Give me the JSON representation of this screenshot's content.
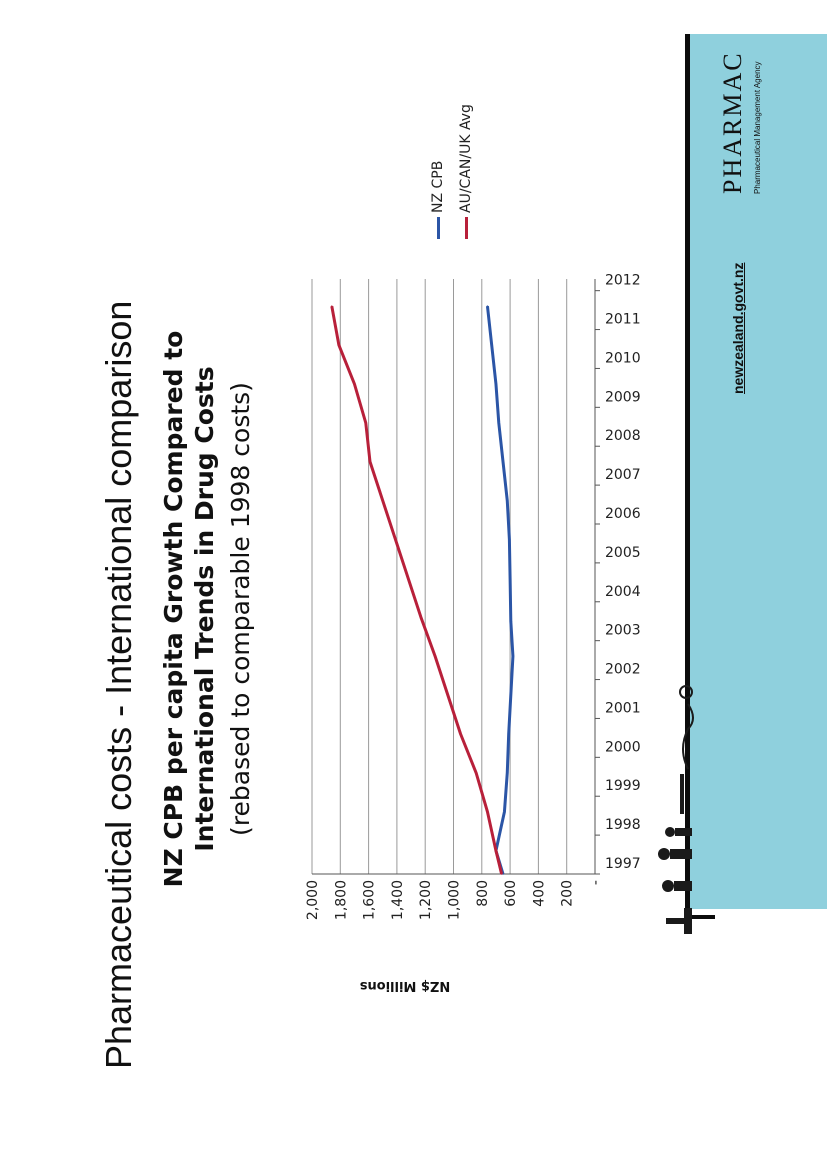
{
  "slide": {
    "title": "Pharmaceutical costs - International comparison"
  },
  "footer": {
    "url": "newzealand.govt.nz",
    "logo_text": "PHARMAC",
    "logo_subtitle": "Pharmaceutical Management Agency"
  },
  "colors": {
    "nz_series": "#2b55a6",
    "intl_series": "#b8203a",
    "footer_bg": "#8fd0dd"
  },
  "chart_data": {
    "type": "line",
    "title": "NZ CPB per capita Growth Compared to International Trends in Drug Costs",
    "subtitle": "(rebased to comparable 1998 costs)",
    "xlabel": "",
    "ylabel": "NZ$ Millions",
    "ylim": [
      0,
      2000
    ],
    "ytick_labels": [
      "-",
      "200",
      "400",
      "600",
      "800",
      "1,000",
      "1,200",
      "1,400",
      "1,600",
      "1,800",
      "2,000"
    ],
    "grid": true,
    "legend_position": "right",
    "categories": [
      "1997",
      "1998",
      "1999",
      "2000",
      "2001",
      "2002",
      "2003",
      "2004",
      "2005",
      "2006",
      "2007",
      "2008",
      "2009",
      "2010",
      "2011",
      "2012"
    ],
    "series": [
      {
        "name": "NZ CPB",
        "color": "#2b55a6",
        "x": [
          1997,
          1997.6,
          1998.6,
          1999.6,
          2000.6,
          2001.6,
          2002.6,
          2003.5,
          2004.6,
          2005.6,
          2006.6,
          2007.6,
          2008.6,
          2009.6,
          2010.6,
          2011.6
        ],
        "values": [
          650,
          700,
          640,
          620,
          610,
          595,
          580,
          595,
          600,
          605,
          620,
          650,
          680,
          700,
          730,
          760
        ]
      },
      {
        "name": "AU/CAN/UK Avg",
        "color": "#b8203a",
        "x": [
          1997,
          1997.6,
          1998.6,
          1999.6,
          2000.6,
          2001.6,
          2002.6,
          2003.6,
          2004.6,
          2005.6,
          2006.6,
          2007.6,
          2008.6,
          2009.6,
          2010.6,
          2011.6
        ],
        "values": [
          660,
          700,
          760,
          840,
          950,
          1040,
          1130,
          1230,
          1320,
          1410,
          1500,
          1590,
          1620,
          1700,
          1810,
          1860
        ]
      }
    ]
  }
}
